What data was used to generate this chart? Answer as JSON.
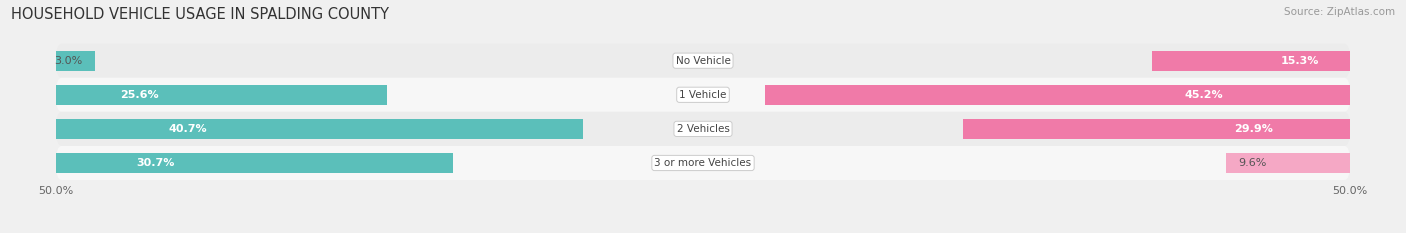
{
  "title": "HOUSEHOLD VEHICLE USAGE IN SPALDING COUNTY",
  "source": "Source: ZipAtlas.com",
  "categories": [
    "No Vehicle",
    "1 Vehicle",
    "2 Vehicles",
    "3 or more Vehicles"
  ],
  "owner_values": [
    3.0,
    25.6,
    40.7,
    30.7
  ],
  "renter_values": [
    15.3,
    45.2,
    29.9,
    9.6
  ],
  "owner_color": "#5bbfba",
  "renter_color": "#f07aa8",
  "renter_color_light": "#f5a8c5",
  "axis_limit": 50.0,
  "title_fontsize": 10.5,
  "source_fontsize": 7.5,
  "label_fontsize": 8,
  "cat_fontsize": 7.5,
  "tick_fontsize": 8,
  "bar_height": 0.58,
  "row_colors": [
    "#ececec",
    "#f7f7f7",
    "#ececec",
    "#f7f7f7"
  ],
  "background_color": "#f0f0f0"
}
